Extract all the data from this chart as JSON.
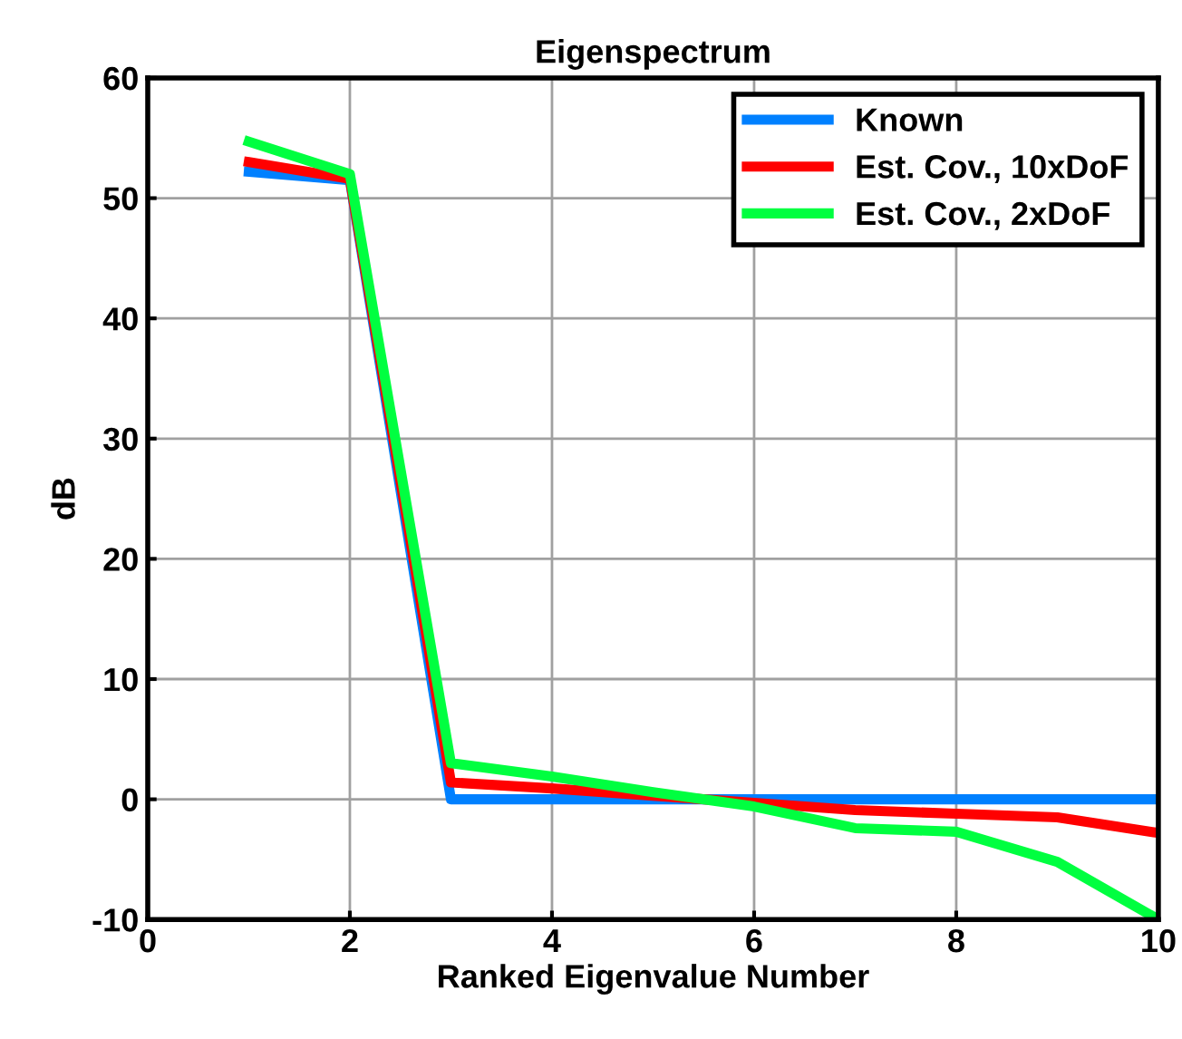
{
  "chart_data": {
    "type": "line",
    "title": "Eigenspectrum",
    "xlabel": "Ranked Eigenvalue Number",
    "ylabel": "dB",
    "x": [
      1,
      2,
      3,
      4,
      5,
      6,
      7,
      8,
      9,
      10
    ],
    "series": [
      {
        "name": "Known",
        "color": "#0080ff",
        "values": [
          52.2,
          51.5,
          0,
          0,
          0,
          0,
          0,
          0,
          0,
          0
        ]
      },
      {
        "name": "Est. Cov., 10xDoF",
        "color": "#ff0000",
        "values": [
          53,
          51.6,
          1.4,
          0.9,
          0.3,
          -0.3,
          -0.9,
          -1.2,
          -1.5,
          -2.8
        ]
      },
      {
        "name": "Est. Cov., 2xDoF",
        "color": "#00ff40",
        "values": [
          54.7,
          52,
          3.0,
          1.9,
          0.6,
          -0.6,
          -2.4,
          -2.7,
          -5.2,
          -10
        ]
      }
    ],
    "xlim": [
      0,
      10
    ],
    "ylim": [
      -10,
      60
    ],
    "xticks": [
      0,
      2,
      4,
      6,
      8,
      10
    ],
    "yticks": [
      -10,
      0,
      10,
      20,
      30,
      40,
      50,
      60
    ],
    "grid": true,
    "legend": "top right",
    "marker": "none",
    "line_style": "solid"
  }
}
